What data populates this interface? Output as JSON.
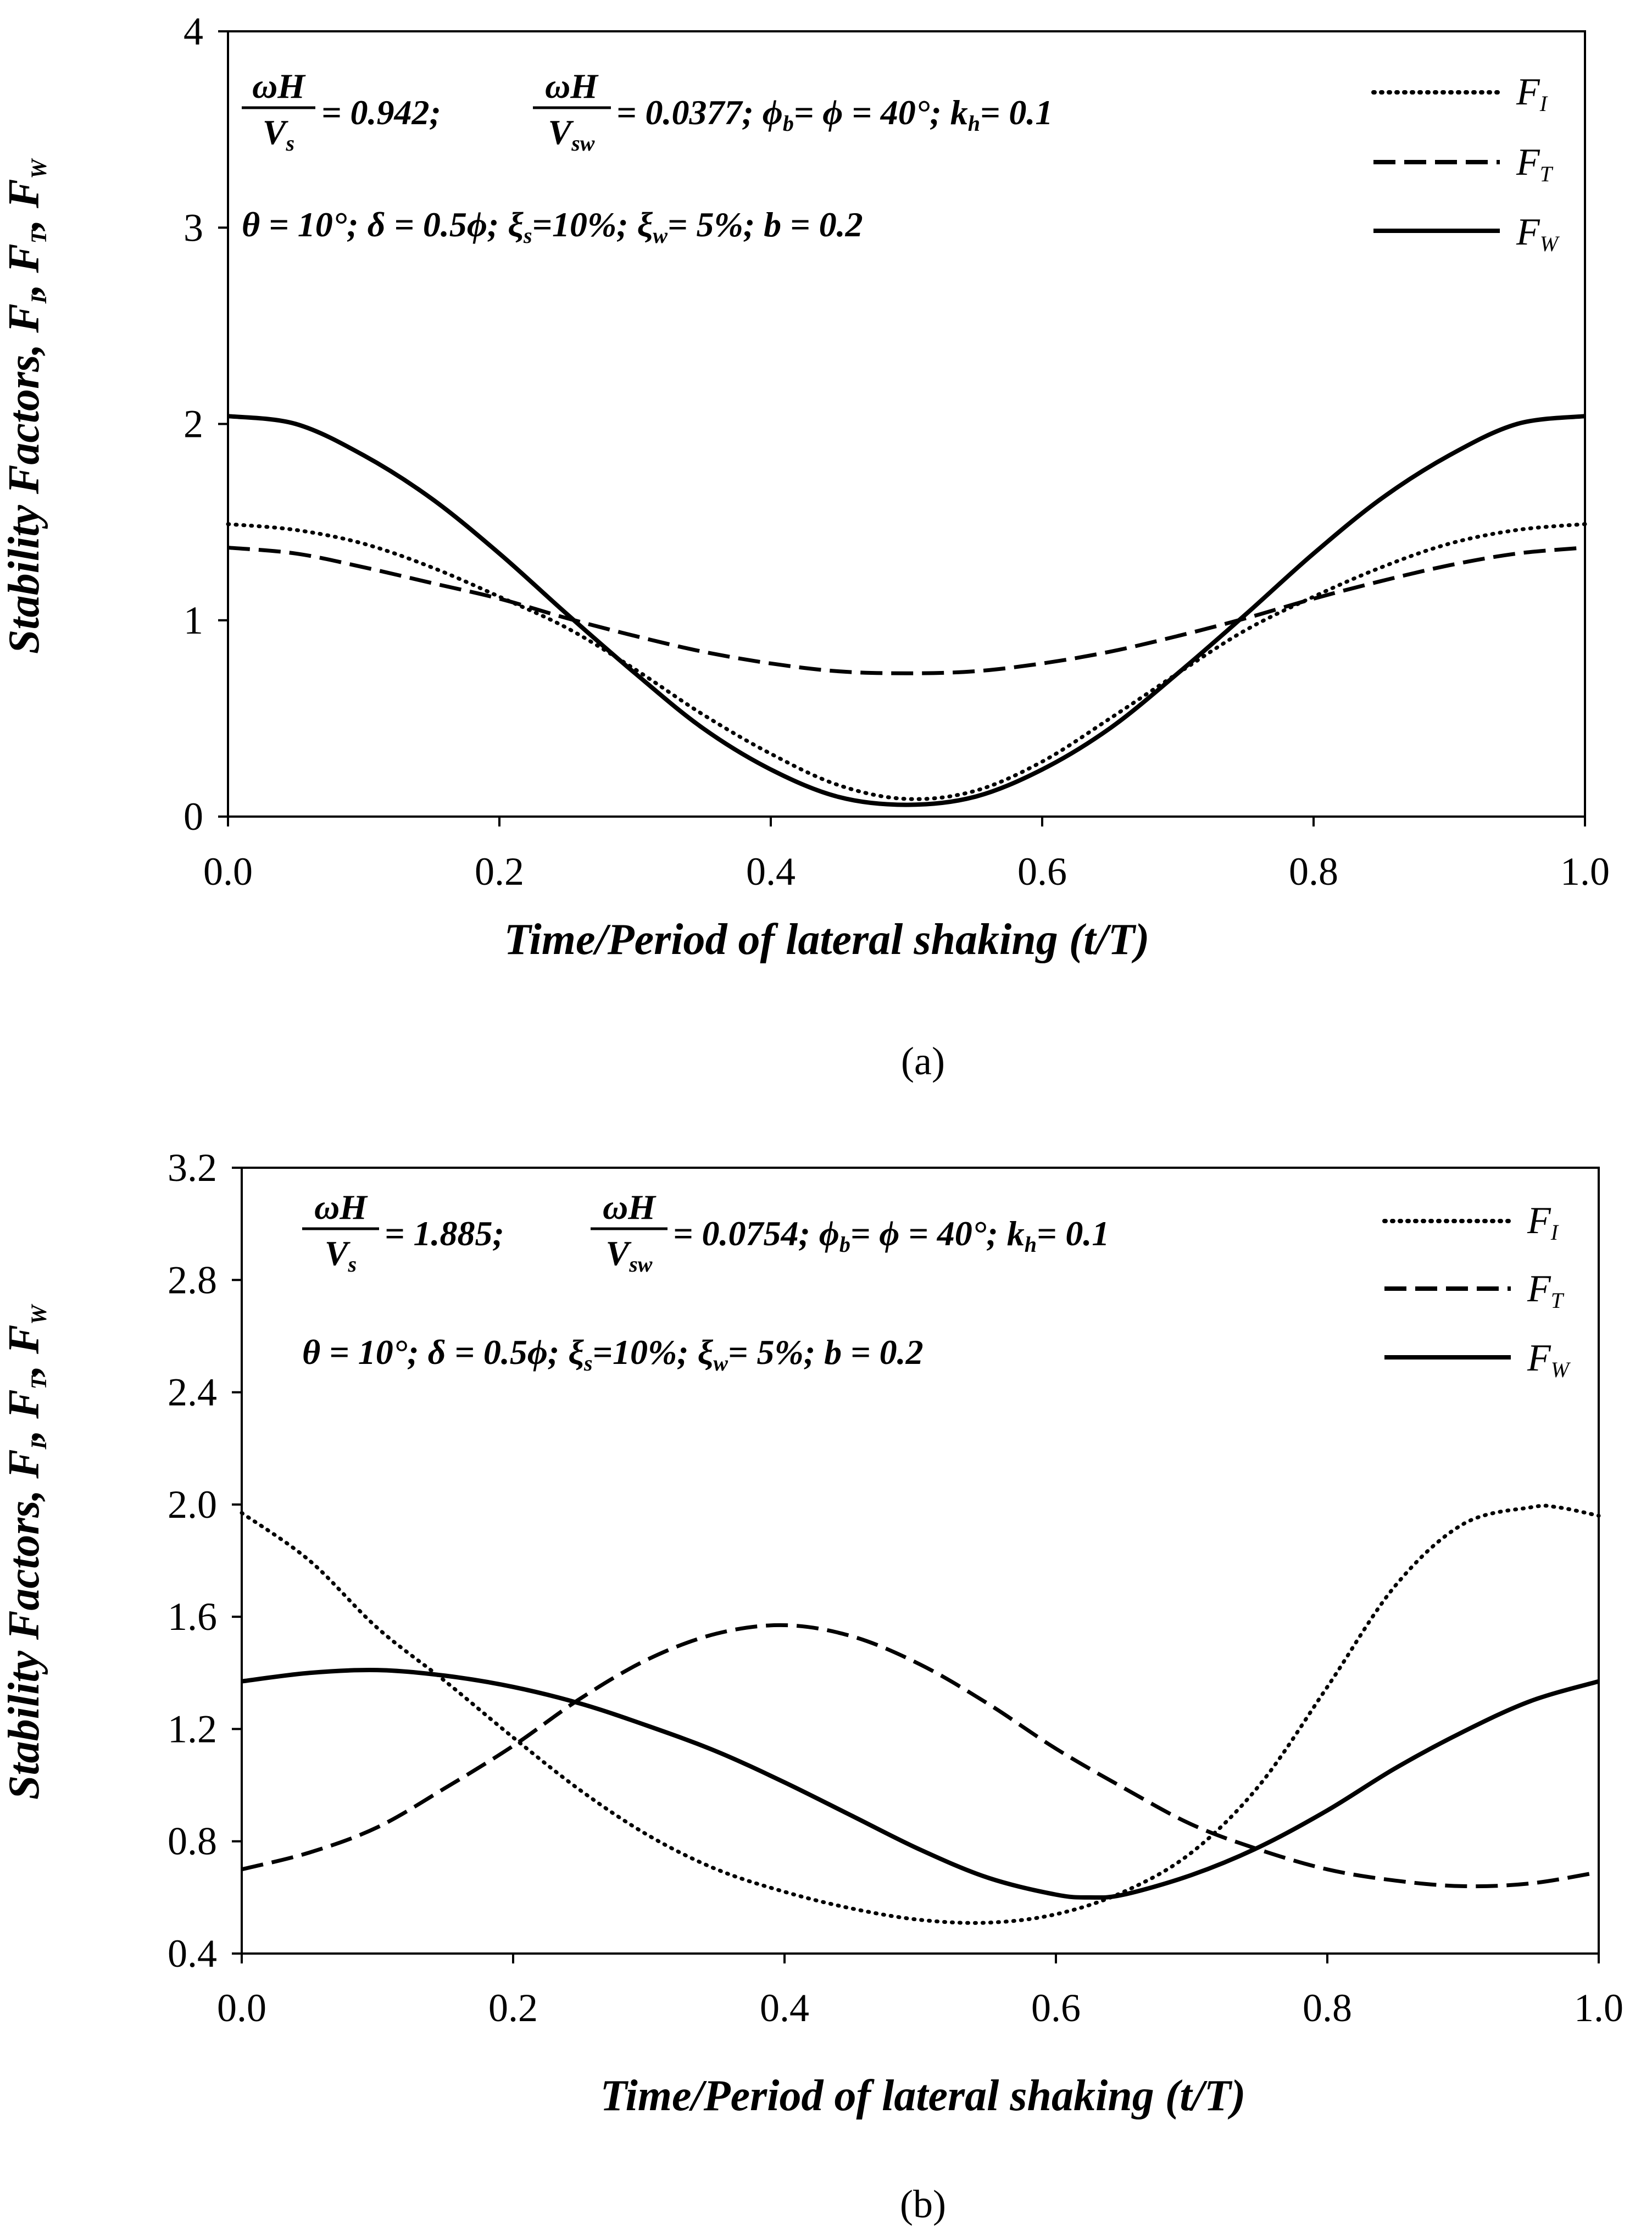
{
  "chart_data": [
    {
      "panel_label": "(a)",
      "type": "line",
      "xlabel": "Time/Period of lateral shaking (t/T)",
      "ylabel": "Stability Factors, F_I, F_T, F_W",
      "ylabel_parts": [
        "Stability Factors, F",
        "I",
        ", F",
        "T",
        ", F",
        "W"
      ],
      "xlim": [
        0,
        1
      ],
      "ylim": [
        0,
        4
      ],
      "x_ticks": [
        "0.0",
        "0.2",
        "0.4",
        "0.6",
        "0.8",
        "1.0"
      ],
      "y_ticks": [
        "0",
        "1",
        "2",
        "3",
        "4"
      ],
      "annotation": {
        "frac1_num": "ωH",
        "frac1_den": "V",
        "frac1_den_sub": "s",
        "val1": "= 0.942;",
        "frac2_num": "ωH",
        "frac2_den": "V",
        "frac2_den_sub": "sw",
        "val2": "= 0.0377; ϕ",
        "phi_sub": "b",
        "rest1": "= ϕ = 40°; k",
        "kh_sub": "h",
        "rest2": "= 0.1",
        "line2a": "θ = 10°; δ = 0.5ϕ; ξ",
        "xs_sub": "s",
        "line2b": "=10%; ξ",
        "xw_sub": "w",
        "line2c": "= 5%; b = 0.2"
      },
      "legend": {
        "placement": "top-right",
        "base": "F",
        "subs": [
          "I",
          "T",
          "W"
        ]
      },
      "series": [
        {
          "key": "FI",
          "style": "dotted",
          "x": [
            0,
            0.05,
            0.1,
            0.15,
            0.2,
            0.25,
            0.3,
            0.35,
            0.4,
            0.45,
            0.5,
            0.55,
            0.6,
            0.65,
            0.7,
            0.75,
            0.8,
            0.85,
            0.9,
            0.95,
            1.0
          ],
          "y": [
            1.49,
            1.46,
            1.39,
            1.27,
            1.12,
            0.96,
            0.75,
            0.52,
            0.32,
            0.16,
            0.09,
            0.13,
            0.28,
            0.5,
            0.73,
            0.95,
            1.12,
            1.27,
            1.39,
            1.46,
            1.49
          ]
        },
        {
          "key": "FT",
          "style": "dashed",
          "x": [
            0,
            0.05,
            0.1,
            0.15,
            0.2,
            0.25,
            0.3,
            0.35,
            0.4,
            0.45,
            0.5,
            0.55,
            0.6,
            0.65,
            0.7,
            0.75,
            0.8,
            0.85,
            0.9,
            0.95,
            1.0
          ],
          "y": [
            1.37,
            1.34,
            1.27,
            1.19,
            1.11,
            1.01,
            0.92,
            0.84,
            0.78,
            0.74,
            0.73,
            0.74,
            0.78,
            0.84,
            0.92,
            1.01,
            1.11,
            1.2,
            1.28,
            1.34,
            1.37
          ]
        },
        {
          "key": "FW",
          "style": "solid",
          "x": [
            0,
            0.05,
            0.1,
            0.15,
            0.2,
            0.25,
            0.3,
            0.35,
            0.4,
            0.45,
            0.5,
            0.55,
            0.6,
            0.65,
            0.7,
            0.75,
            0.8,
            0.85,
            0.9,
            0.95,
            1.0
          ],
          "y": [
            2.04,
            2.0,
            1.84,
            1.62,
            1.34,
            1.03,
            0.73,
            0.45,
            0.24,
            0.1,
            0.06,
            0.1,
            0.24,
            0.45,
            0.73,
            1.03,
            1.34,
            1.62,
            1.84,
            2.0,
            2.04
          ]
        }
      ]
    },
    {
      "panel_label": "(b)",
      "type": "line",
      "xlabel": "Time/Period of lateral shaking (t/T)",
      "ylabel": "Stability Factors, F_I, F_T, F_W",
      "ylabel_parts": [
        "Stability Factors, F",
        "I",
        ", F",
        "T",
        ", F",
        "W"
      ],
      "xlim": [
        0,
        1
      ],
      "ylim": [
        0.4,
        3.2
      ],
      "x_ticks": [
        "0.0",
        "0.2",
        "0.4",
        "0.6",
        "0.8",
        "1.0"
      ],
      "y_ticks": [
        "0.4",
        "0.8",
        "1.2",
        "1.6",
        "2.0",
        "2.4",
        "2.8",
        "3.2"
      ],
      "annotation": {
        "frac1_num": "ωH",
        "frac1_den": "V",
        "frac1_den_sub": "s",
        "val1": "= 1.885;",
        "frac2_num": "ωH",
        "frac2_den": "V",
        "frac2_den_sub": "sw",
        "val2": "= 0.0754; ϕ",
        "phi_sub": "b",
        "rest1": "= ϕ = 40°; k",
        "kh_sub": "h",
        "rest2": "= 0.1",
        "line2a": "θ = 10°; δ = 0.5ϕ; ξ",
        "xs_sub": "s",
        "line2b": "=10%; ξ",
        "xw_sub": "w",
        "line2c": "= 5%; b = 0.2"
      },
      "legend": {
        "placement": "top-right",
        "base": "F",
        "subs": [
          "I",
          "T",
          "W"
        ]
      },
      "series": [
        {
          "key": "FI",
          "style": "dotted",
          "x": [
            0,
            0.05,
            0.1,
            0.15,
            0.2,
            0.25,
            0.3,
            0.35,
            0.4,
            0.45,
            0.5,
            0.55,
            0.6,
            0.65,
            0.7,
            0.75,
            0.8,
            0.85,
            0.9,
            0.95,
            0.97,
            1.0
          ],
          "y": [
            1.97,
            1.8,
            1.56,
            1.37,
            1.17,
            0.98,
            0.82,
            0.7,
            0.62,
            0.56,
            0.52,
            0.51,
            0.54,
            0.62,
            0.76,
            1.0,
            1.35,
            1.71,
            1.93,
            1.99,
            1.99,
            1.96
          ]
        },
        {
          "key": "FT",
          "style": "dashed",
          "x": [
            0,
            0.05,
            0.1,
            0.15,
            0.2,
            0.25,
            0.3,
            0.35,
            0.4,
            0.45,
            0.5,
            0.55,
            0.6,
            0.65,
            0.7,
            0.75,
            0.8,
            0.85,
            0.9,
            0.95,
            1.0
          ],
          "y": [
            0.7,
            0.76,
            0.85,
            0.99,
            1.14,
            1.31,
            1.45,
            1.54,
            1.57,
            1.53,
            1.43,
            1.29,
            1.13,
            0.99,
            0.86,
            0.77,
            0.7,
            0.66,
            0.64,
            0.65,
            0.69
          ]
        },
        {
          "key": "FW",
          "style": "solid",
          "x": [
            0,
            0.05,
            0.1,
            0.15,
            0.2,
            0.25,
            0.3,
            0.35,
            0.4,
            0.45,
            0.5,
            0.55,
            0.6,
            0.625,
            0.65,
            0.7,
            0.75,
            0.8,
            0.85,
            0.9,
            0.95,
            1.0
          ],
          "y": [
            1.37,
            1.4,
            1.41,
            1.39,
            1.35,
            1.29,
            1.21,
            1.12,
            1.01,
            0.89,
            0.77,
            0.67,
            0.61,
            0.6,
            0.61,
            0.68,
            0.78,
            0.91,
            1.06,
            1.19,
            1.3,
            1.37
          ]
        }
      ]
    }
  ]
}
